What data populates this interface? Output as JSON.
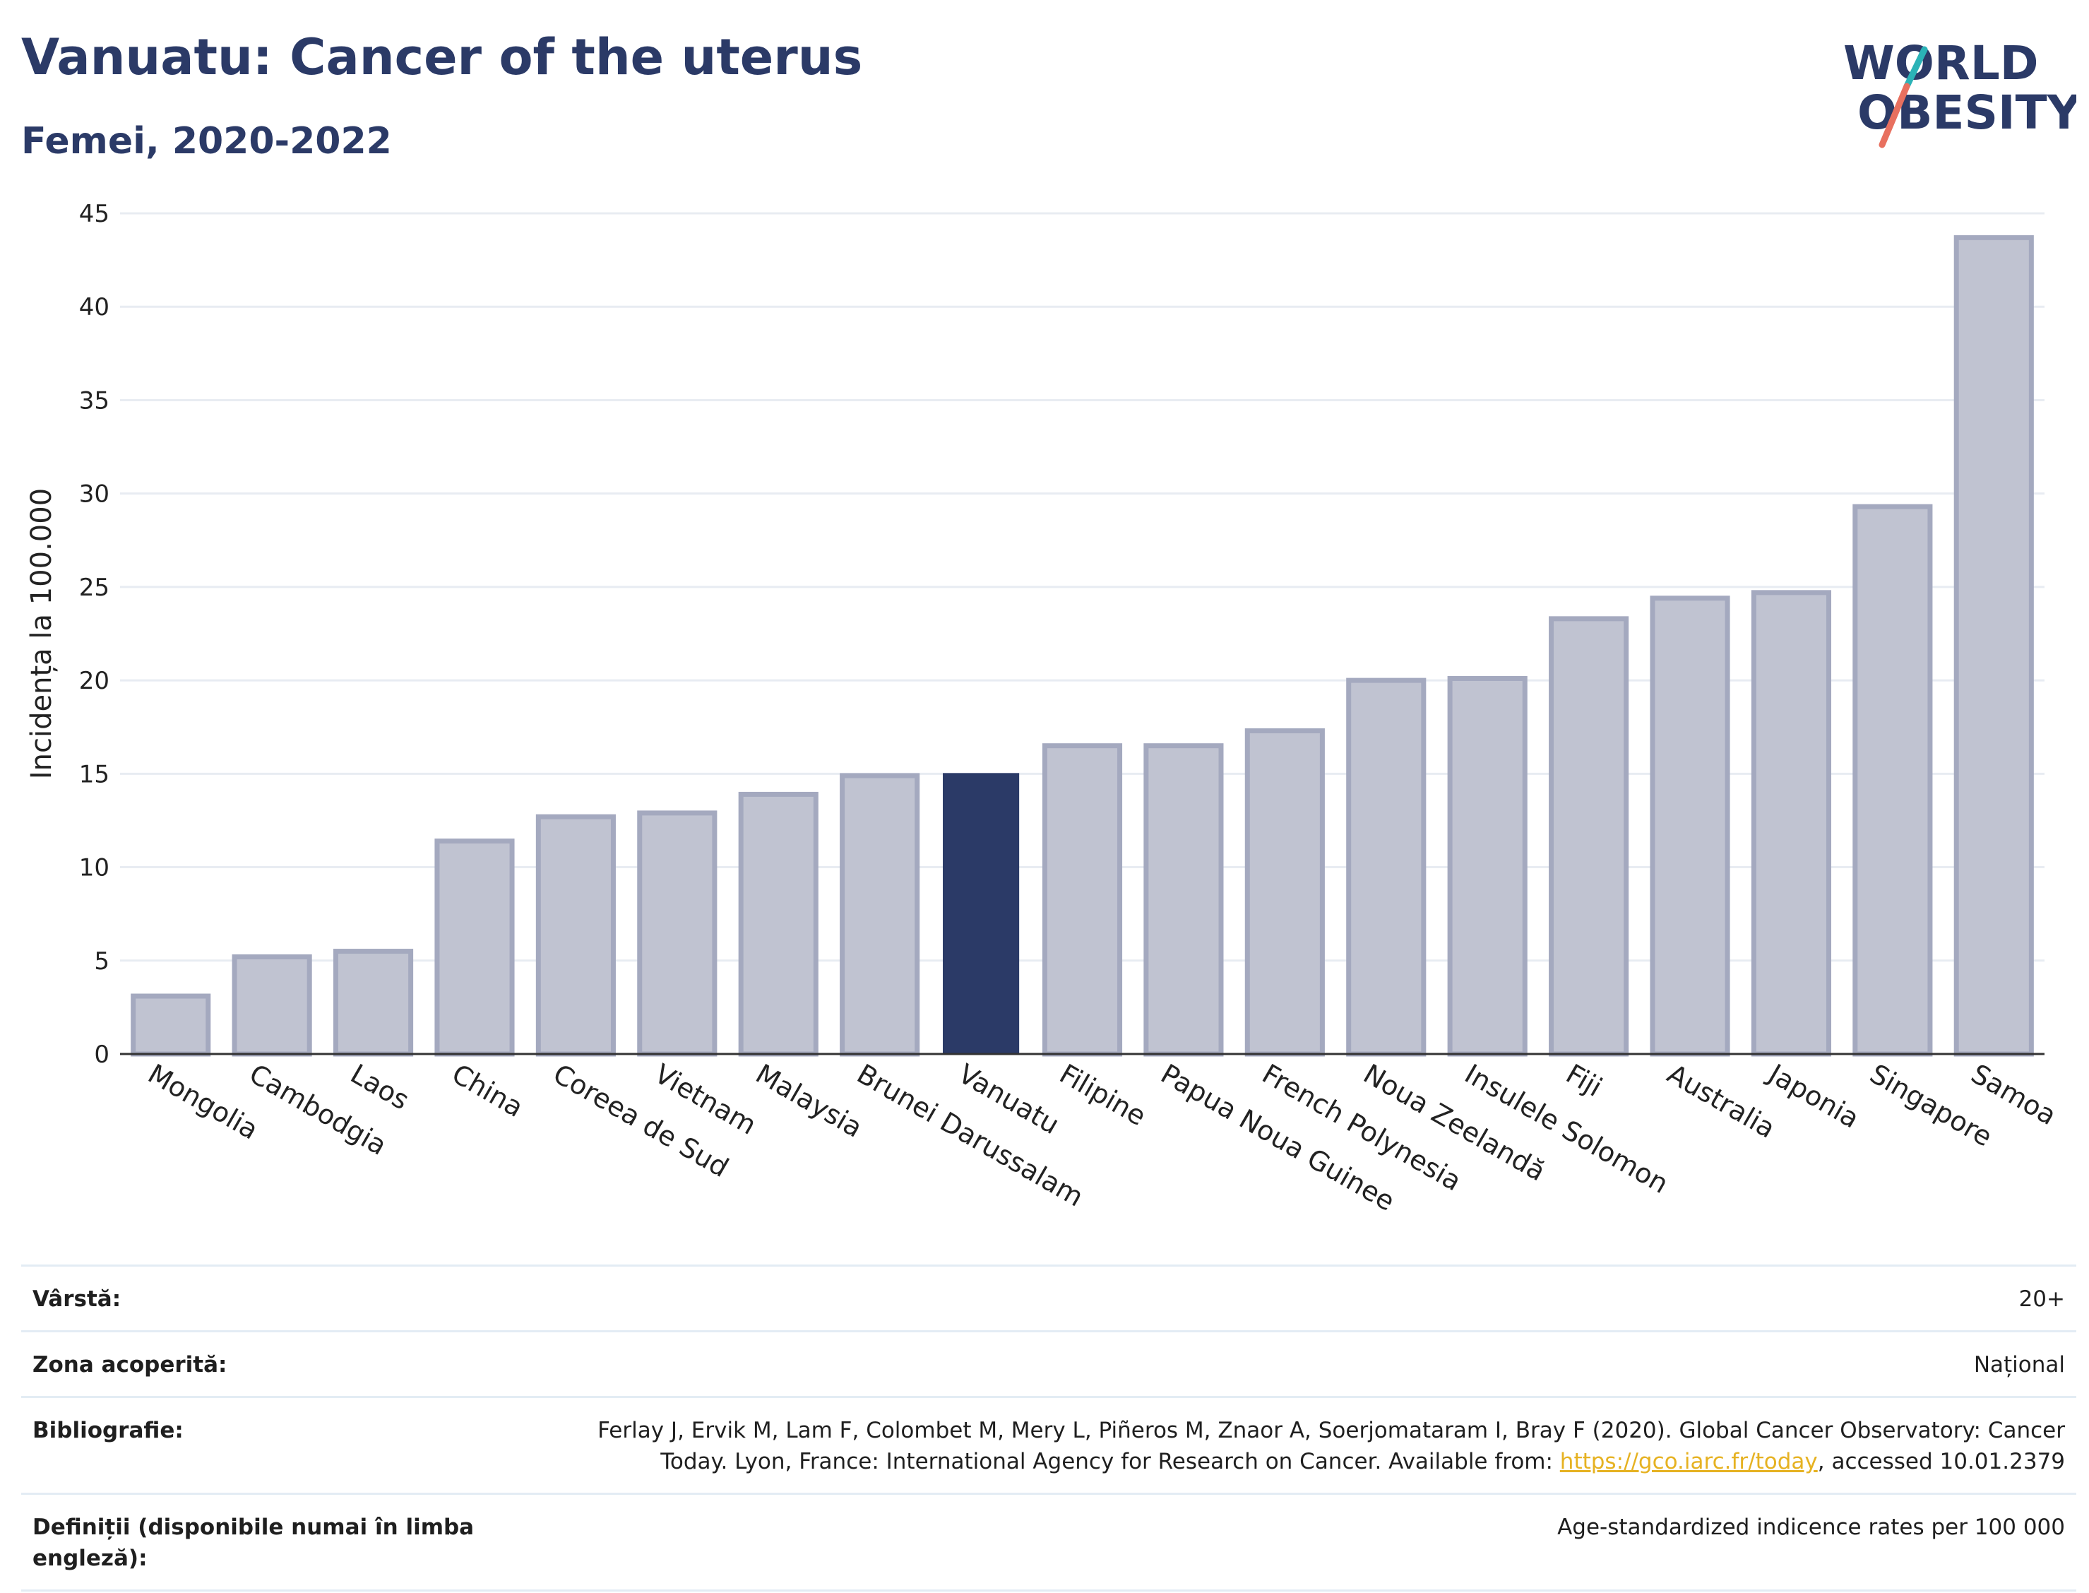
{
  "header": {
    "title": "Vanuatu: Cancer of the uterus",
    "subtitle": "Femei, 2020-2022"
  },
  "logo": {
    "line1": "WORLD",
    "line2": "OBESITY",
    "colors": {
      "text": "#2b3a67",
      "teal": "#2bb3b7",
      "coral": "#e8705f"
    }
  },
  "colors": {
    "highlight_bar": "#2b3a67",
    "other_bar_fill": "#c0c3d1",
    "other_bar_stroke": "#a4a9bf",
    "gridline": "#e8ecf2",
    "axis": "#333333"
  },
  "chart_data": {
    "type": "bar",
    "ylabel": "Incidența la 100.000",
    "xlabel": "",
    "ylim": [
      0,
      45
    ],
    "yticks": [
      0,
      5,
      10,
      15,
      20,
      25,
      30,
      35,
      40,
      45
    ],
    "grid": true,
    "highlight": "Vanuatu",
    "categories": [
      "Mongolia",
      "Cambodgia",
      "Laos",
      "China",
      "Coreea de Sud",
      "Vietnam",
      "Malaysia",
      "Brunei Darussalam",
      "Vanuatu",
      "Filipine",
      "Papua Noua Guinee",
      "French Polynesia",
      "Noua Zeelandă",
      "Insulele Solomon",
      "Fiji",
      "Australia",
      "Japonia",
      "Singapore",
      "Samoa"
    ],
    "values": [
      3.1,
      5.2,
      5.5,
      11.4,
      12.7,
      12.9,
      13.9,
      14.9,
      15.0,
      16.5,
      16.5,
      17.3,
      20.0,
      20.1,
      23.3,
      24.4,
      24.7,
      29.3,
      43.7
    ]
  },
  "meta": [
    {
      "label": "Vârstă:",
      "value": "20+"
    },
    {
      "label": "Zona acoperită:",
      "value": "Național"
    },
    {
      "label": "Bibliografie:",
      "value_pre": "Ferlay J, Ervik M, Lam F, Colombet M, Mery L, Piñeros M, Znaor A, Soerjomataram I, Bray F (2020). Global Cancer Observatory: Cancer Today. Lyon, France: International Agency for Research on Cancer. Available from: ",
      "link": "https://gco.iarc.fr/today",
      "value_post": ", accessed 10.01.2379"
    },
    {
      "label": "Definiții (disponibile numai în limba engleză):",
      "value": "Age-standardized indicence rates per 100 000"
    }
  ]
}
